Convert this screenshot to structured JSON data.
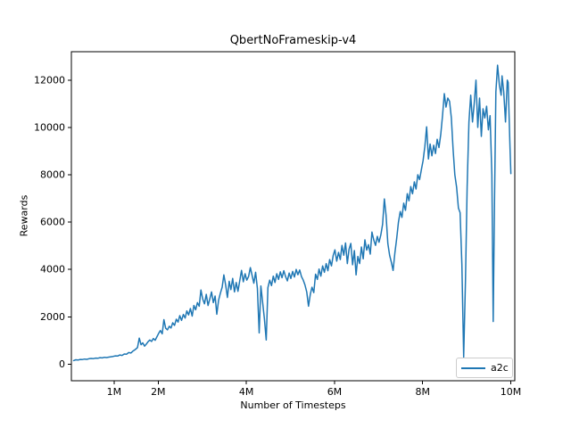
{
  "chart_data": {
    "type": "line",
    "title": "QbertNoFrameskip-v4",
    "xlabel": "Number of Timesteps",
    "ylabel": "Rewards",
    "grid": false,
    "x_unit": "millions of timesteps",
    "xlim": [
      0.03,
      10.09
    ],
    "ylim": [
      -700,
      13200
    ],
    "x_ticks": [
      {
        "v": 1,
        "label": "1M"
      },
      {
        "v": 2,
        "label": "2M"
      },
      {
        "v": 4,
        "label": "4M"
      },
      {
        "v": 6,
        "label": "6M"
      },
      {
        "v": 8,
        "label": "8M"
      },
      {
        "v": 10,
        "label": "10M"
      }
    ],
    "y_ticks": [
      {
        "v": 0,
        "label": "0"
      },
      {
        "v": 2000,
        "label": "2000"
      },
      {
        "v": 4000,
        "label": "4000"
      },
      {
        "v": 6000,
        "label": "6000"
      },
      {
        "v": 8000,
        "label": "8000"
      },
      {
        "v": 10000,
        "label": "10000"
      },
      {
        "v": 12000,
        "label": "12000"
      }
    ],
    "axis_color": "#000000",
    "legend": {
      "position": "lower right",
      "entries": [
        {
          "label": "a2c",
          "color": "#1f77b4"
        }
      ]
    },
    "series": [
      {
        "name": "a2c",
        "color": "#1f77b4",
        "points": [
          [
            0.08,
            150
          ],
          [
            0.13,
            185
          ],
          [
            0.18,
            175
          ],
          [
            0.23,
            200
          ],
          [
            0.28,
            195
          ],
          [
            0.33,
            215
          ],
          [
            0.38,
            205
          ],
          [
            0.43,
            230
          ],
          [
            0.48,
            240
          ],
          [
            0.53,
            235
          ],
          [
            0.58,
            255
          ],
          [
            0.63,
            250
          ],
          [
            0.68,
            275
          ],
          [
            0.73,
            265
          ],
          [
            0.78,
            290
          ],
          [
            0.83,
            280
          ],
          [
            0.88,
            300
          ],
          [
            0.93,
            315
          ],
          [
            0.98,
            330
          ],
          [
            1.03,
            350
          ],
          [
            1.08,
            345
          ],
          [
            1.13,
            390
          ],
          [
            1.18,
            370
          ],
          [
            1.23,
            430
          ],
          [
            1.28,
            420
          ],
          [
            1.33,
            490
          ],
          [
            1.38,
            470
          ],
          [
            1.43,
            560
          ],
          [
            1.48,
            620
          ],
          [
            1.53,
            700
          ],
          [
            1.57,
            1100
          ],
          [
            1.61,
            820
          ],
          [
            1.65,
            900
          ],
          [
            1.69,
            760
          ],
          [
            1.73,
            850
          ],
          [
            1.77,
            950
          ],
          [
            1.81,
            1020
          ],
          [
            1.85,
            960
          ],
          [
            1.89,
            1080
          ],
          [
            1.93,
            1010
          ],
          [
            1.97,
            1150
          ],
          [
            2.01,
            1300
          ],
          [
            2.05,
            1420
          ],
          [
            2.09,
            1280
          ],
          [
            2.13,
            1880
          ],
          [
            2.17,
            1520
          ],
          [
            2.21,
            1450
          ],
          [
            2.25,
            1600
          ],
          [
            2.29,
            1530
          ],
          [
            2.33,
            1750
          ],
          [
            2.37,
            1640
          ],
          [
            2.41,
            1900
          ],
          [
            2.45,
            1780
          ],
          [
            2.49,
            2050
          ],
          [
            2.53,
            1850
          ],
          [
            2.57,
            2100
          ],
          [
            2.61,
            1950
          ],
          [
            2.65,
            2250
          ],
          [
            2.69,
            2080
          ],
          [
            2.73,
            2350
          ],
          [
            2.77,
            2030
          ],
          [
            2.81,
            2480
          ],
          [
            2.85,
            2300
          ],
          [
            2.89,
            2600
          ],
          [
            2.93,
            2450
          ],
          [
            2.97,
            3130
          ],
          [
            3.01,
            2750
          ],
          [
            3.05,
            2550
          ],
          [
            3.09,
            2950
          ],
          [
            3.13,
            2480
          ],
          [
            3.17,
            2750
          ],
          [
            3.21,
            3050
          ],
          [
            3.25,
            2600
          ],
          [
            3.29,
            2880
          ],
          [
            3.33,
            2110
          ],
          [
            3.37,
            2700
          ],
          [
            3.41,
            3000
          ],
          [
            3.45,
            3250
          ],
          [
            3.49,
            3770
          ],
          [
            3.53,
            3350
          ],
          [
            3.57,
            2820
          ],
          [
            3.61,
            3500
          ],
          [
            3.65,
            3150
          ],
          [
            3.69,
            3620
          ],
          [
            3.73,
            3050
          ],
          [
            3.77,
            3450
          ],
          [
            3.81,
            3080
          ],
          [
            3.85,
            3520
          ],
          [
            3.89,
            3960
          ],
          [
            3.93,
            3480
          ],
          [
            3.97,
            3820
          ],
          [
            4.01,
            3550
          ],
          [
            4.05,
            3700
          ],
          [
            4.09,
            4080
          ],
          [
            4.13,
            3740
          ],
          [
            4.17,
            3420
          ],
          [
            4.21,
            3880
          ],
          [
            4.25,
            3200
          ],
          [
            4.29,
            1320
          ],
          [
            4.33,
            3300
          ],
          [
            4.37,
            2600
          ],
          [
            4.41,
            1900
          ],
          [
            4.45,
            1020
          ],
          [
            4.49,
            3240
          ],
          [
            4.53,
            3550
          ],
          [
            4.57,
            3320
          ],
          [
            4.61,
            3720
          ],
          [
            4.65,
            3450
          ],
          [
            4.69,
            3820
          ],
          [
            4.73,
            3580
          ],
          [
            4.77,
            3900
          ],
          [
            4.81,
            3650
          ],
          [
            4.85,
            3950
          ],
          [
            4.89,
            3700
          ],
          [
            4.93,
            3520
          ],
          [
            4.97,
            3850
          ],
          [
            5.01,
            3620
          ],
          [
            5.05,
            3920
          ],
          [
            5.09,
            3680
          ],
          [
            5.13,
            4000
          ],
          [
            5.17,
            3780
          ],
          [
            5.21,
            3980
          ],
          [
            5.25,
            3700
          ],
          [
            5.29,
            3550
          ],
          [
            5.33,
            3350
          ],
          [
            5.37,
            3050
          ],
          [
            5.41,
            2450
          ],
          [
            5.45,
            2950
          ],
          [
            5.49,
            3250
          ],
          [
            5.53,
            3020
          ],
          [
            5.57,
            3800
          ],
          [
            5.61,
            3580
          ],
          [
            5.65,
            4020
          ],
          [
            5.69,
            3720
          ],
          [
            5.73,
            4150
          ],
          [
            5.77,
            3880
          ],
          [
            5.81,
            4250
          ],
          [
            5.85,
            3950
          ],
          [
            5.89,
            4420
          ],
          [
            5.93,
            4150
          ],
          [
            5.97,
            4600
          ],
          [
            6.01,
            4830
          ],
          [
            6.05,
            4350
          ],
          [
            6.09,
            4720
          ],
          [
            6.13,
            4420
          ],
          [
            6.17,
            5020
          ],
          [
            6.21,
            4600
          ],
          [
            6.25,
            5120
          ],
          [
            6.29,
            4250
          ],
          [
            6.33,
            4850
          ],
          [
            6.37,
            5100
          ],
          [
            6.41,
            4200
          ],
          [
            6.45,
            4800
          ],
          [
            6.49,
            3770
          ],
          [
            6.53,
            4550
          ],
          [
            6.57,
            4250
          ],
          [
            6.61,
            4950
          ],
          [
            6.65,
            4450
          ],
          [
            6.69,
            5250
          ],
          [
            6.73,
            4820
          ],
          [
            6.77,
            5050
          ],
          [
            6.81,
            4650
          ],
          [
            6.85,
            5580
          ],
          [
            6.89,
            5250
          ],
          [
            6.93,
            5020
          ],
          [
            6.97,
            5400
          ],
          [
            7.01,
            5150
          ],
          [
            7.05,
            5450
          ],
          [
            7.09,
            5900
          ],
          [
            7.13,
            6980
          ],
          [
            7.17,
            6300
          ],
          [
            7.21,
            5100
          ],
          [
            7.25,
            4600
          ],
          [
            7.29,
            4300
          ],
          [
            7.33,
            3960
          ],
          [
            7.37,
            4700
          ],
          [
            7.41,
            5300
          ],
          [
            7.45,
            6000
          ],
          [
            7.49,
            6450
          ],
          [
            7.53,
            6200
          ],
          [
            7.57,
            6800
          ],
          [
            7.61,
            6500
          ],
          [
            7.65,
            7200
          ],
          [
            7.69,
            6900
          ],
          [
            7.73,
            7500
          ],
          [
            7.77,
            7200
          ],
          [
            7.81,
            7700
          ],
          [
            7.85,
            7400
          ],
          [
            7.89,
            8000
          ],
          [
            7.93,
            7800
          ],
          [
            7.97,
            8220
          ],
          [
            8.01,
            8600
          ],
          [
            8.05,
            9200
          ],
          [
            8.09,
            10030
          ],
          [
            8.13,
            8670
          ],
          [
            8.17,
            9300
          ],
          [
            8.21,
            8800
          ],
          [
            8.25,
            9250
          ],
          [
            8.29,
            8900
          ],
          [
            8.33,
            9500
          ],
          [
            8.37,
            9150
          ],
          [
            8.41,
            9700
          ],
          [
            8.45,
            10500
          ],
          [
            8.49,
            11430
          ],
          [
            8.53,
            10860
          ],
          [
            8.57,
            11240
          ],
          [
            8.61,
            11100
          ],
          [
            8.65,
            10400
          ],
          [
            8.69,
            9100
          ],
          [
            8.73,
            8000
          ],
          [
            8.77,
            7470
          ],
          [
            8.81,
            6600
          ],
          [
            8.85,
            6400
          ],
          [
            8.89,
            4200
          ],
          [
            8.93,
            300
          ],
          [
            8.97,
            3500
          ],
          [
            9.01,
            7500
          ],
          [
            9.05,
            10230
          ],
          [
            9.09,
            11360
          ],
          [
            9.13,
            10230
          ],
          [
            9.17,
            11000
          ],
          [
            9.21,
            12000
          ],
          [
            9.25,
            10000
          ],
          [
            9.29,
            11240
          ],
          [
            9.33,
            9620
          ],
          [
            9.37,
            10790
          ],
          [
            9.41,
            10400
          ],
          [
            9.45,
            10900
          ],
          [
            9.49,
            9900
          ],
          [
            9.53,
            10500
          ],
          [
            9.57,
            8000
          ],
          [
            9.6,
            1800
          ],
          [
            9.63,
            7000
          ],
          [
            9.66,
            11500
          ],
          [
            9.7,
            12630
          ],
          [
            9.74,
            11800
          ],
          [
            9.78,
            11360
          ],
          [
            9.8,
            12180
          ],
          [
            9.84,
            11500
          ],
          [
            9.88,
            10230
          ],
          [
            9.92,
            12000
          ],
          [
            9.94,
            11900
          ],
          [
            9.96,
            10500
          ],
          [
            9.98,
            9200
          ],
          [
            10.0,
            8050
          ]
        ]
      }
    ]
  }
}
